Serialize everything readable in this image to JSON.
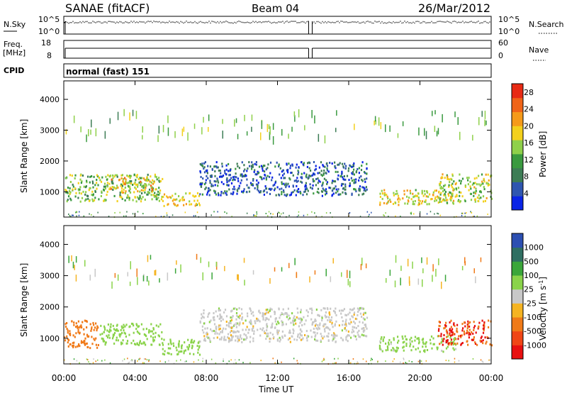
{
  "header": {
    "station": "SANAE (fitACF)",
    "beam": "Beam 04",
    "date": "26/Mar/2012"
  },
  "strip": {
    "nsky_label": "N.Sky",
    "nsky_ticks": [
      "10^5",
      "10^0"
    ],
    "nsearch_label": "N.Search",
    "freq_label_1": "Freq.",
    "freq_label_2": "[MHz]",
    "freq_ticks": [
      "18",
      "8"
    ],
    "nave_ticks": [
      "60",
      "0"
    ],
    "nave_label": "Nave",
    "cpid_label": "CPID",
    "cpid_value": "normal (fast) 151"
  },
  "axes": {
    "ylabel": "Slant Range [km]",
    "xlabel": "Time UT"
  },
  "colorbars": {
    "power_label": "Power [dB]",
    "velocity_label": "Velocity [m s",
    "velocity_unit_exp": "-1",
    "velocity_unit_close": "]",
    "power_colors": [
      "#0a24e6",
      "#2f56b0",
      "#3d7d55",
      "#3a9a3f",
      "#8fd04a",
      "#f3d01c",
      "#f59a1a",
      "#f06418",
      "#e82a14"
    ],
    "velocity_colors": [
      "#e81010",
      "#f04616",
      "#f07a18",
      "#f5b422",
      "#c8c8c8",
      "#8ad34a",
      "#3aa63a",
      "#2f6f62",
      "#2c4fb2"
    ]
  },
  "chart_data": [
    {
      "type": "heatmap",
      "panel": "power",
      "xlabel": "Time UT",
      "ylabel": "Slant Range [km]",
      "x_ticks": [
        "00:00",
        "04:00",
        "08:00",
        "12:00",
        "16:00",
        "20:00",
        "00:00"
      ],
      "xlim_hours": [
        0,
        24
      ],
      "y_ticks": [
        1000,
        2000,
        3000,
        4000
      ],
      "ylim": [
        180,
        4600
      ],
      "colorbar": {
        "label": "Power [dB]",
        "ticks": [
          4,
          8,
          12,
          16,
          20,
          24,
          28
        ],
        "range": [
          0,
          30
        ]
      },
      "regions": [
        {
          "t_start": 0.0,
          "t_end": 5.5,
          "range_km": [
            700,
            1600
          ],
          "power_db": 14
        },
        {
          "t_start": 2.5,
          "t_end": 5.0,
          "range_km": [
            1000,
            1500
          ],
          "power_db": 20
        },
        {
          "t_start": 5.5,
          "t_end": 7.6,
          "range_km": [
            550,
            1000
          ],
          "power_db": 18
        },
        {
          "t_start": 7.6,
          "t_end": 17.0,
          "range_km": [
            900,
            2000
          ],
          "power_db": 6
        },
        {
          "t_start": 17.7,
          "t_end": 22.0,
          "range_km": [
            600,
            1100
          ],
          "power_db": 18
        },
        {
          "t_start": 21.0,
          "t_end": 24.0,
          "range_km": [
            700,
            1600
          ],
          "power_db": 16
        }
      ]
    },
    {
      "type": "heatmap",
      "panel": "velocity",
      "xlabel": "Time UT",
      "ylabel": "Slant Range [km]",
      "x_ticks": [
        "00:00",
        "04:00",
        "08:00",
        "12:00",
        "16:00",
        "20:00",
        "00:00"
      ],
      "xlim_hours": [
        0,
        24
      ],
      "y_ticks": [
        1000,
        2000,
        3000,
        4000
      ],
      "ylim": [
        180,
        4600
      ],
      "colorbar": {
        "label": "Velocity [m s^-1]",
        "ticks": [
          1000,
          500,
          100,
          25,
          -25,
          -100,
          -500,
          -1000
        ],
        "range": [
          -1000,
          1000
        ]
      },
      "regions": [
        {
          "t_start": 0.0,
          "t_end": 2.0,
          "range_km": [
            700,
            1600
          ],
          "velocity_ms": -300
        },
        {
          "t_start": 2.0,
          "t_end": 5.5,
          "range_km": [
            800,
            1500
          ],
          "velocity_ms": 60
        },
        {
          "t_start": 5.5,
          "t_end": 7.6,
          "range_km": [
            500,
            1000
          ],
          "velocity_ms": 60
        },
        {
          "t_start": 7.6,
          "t_end": 17.0,
          "range_km": [
            900,
            2000
          ],
          "velocity_ms": 0
        },
        {
          "t_start": 17.7,
          "t_end": 22.0,
          "range_km": [
            600,
            1100
          ],
          "velocity_ms": 50
        },
        {
          "t_start": 21.0,
          "t_end": 24.0,
          "range_km": [
            800,
            1600
          ],
          "velocity_ms": -500
        }
      ]
    }
  ]
}
